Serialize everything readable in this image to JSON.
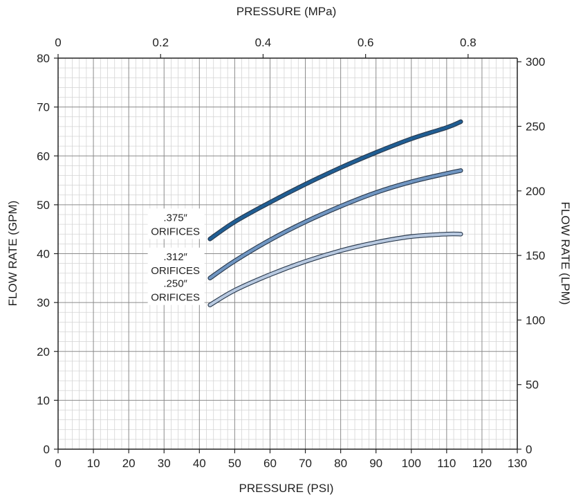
{
  "chart_data": {
    "type": "line",
    "title": "",
    "x_axis_bottom": {
      "label": "PRESSURE (PSI)",
      "range": [
        0,
        130
      ],
      "ticks": [
        0,
        10,
        20,
        30,
        40,
        50,
        60,
        70,
        80,
        90,
        100,
        110,
        120,
        130
      ],
      "tick_labels": [
        "0",
        "10",
        "20",
        "30",
        "40",
        "50",
        "60",
        "70",
        "80",
        "90",
        "100",
        "110",
        "120",
        "130"
      ]
    },
    "x_axis_top": {
      "label": "PRESSURE (MPa)",
      "range": [
        0,
        0.896
      ],
      "ticks": [
        0,
        0.2,
        0.4,
        0.6,
        0.8
      ],
      "tick_labels": [
        "0",
        "0.2",
        "0.4",
        "0.6",
        "0.8"
      ]
    },
    "y_axis_left": {
      "label": "FLOW RATE (GPM)",
      "range": [
        0,
        80
      ],
      "ticks": [
        0,
        10,
        20,
        30,
        40,
        50,
        60,
        70,
        80
      ],
      "tick_labels": [
        "0",
        "10",
        "20",
        "30",
        "40",
        "50",
        "60",
        "70",
        "80"
      ]
    },
    "y_axis_right": {
      "label": "FLOW RATE (LPM)",
      "range": [
        0,
        302.8
      ],
      "ticks": [
        0,
        50,
        100,
        150,
        200,
        250,
        300
      ],
      "tick_labels": [
        "0",
        "50",
        "100",
        "150",
        "200",
        "250",
        "300"
      ]
    },
    "grid": true,
    "series": [
      {
        "name": ".375″ ORIFICES",
        "label_lines": [
          ".375″",
          "ORIFICES"
        ],
        "color": "#1f5e94",
        "x": [
          43,
          50,
          60,
          70,
          80,
          90,
          100,
          110,
          114
        ],
        "y": [
          43,
          46.5,
          50.5,
          54.2,
          57.6,
          60.7,
          63.5,
          65.8,
          67
        ]
      },
      {
        "name": ".312″ ORIFICES",
        "label_lines": [
          ".312″",
          "ORIFICES"
        ],
        "color": "#7096c2",
        "x": [
          43,
          50,
          60,
          70,
          80,
          90,
          100,
          110,
          114
        ],
        "y": [
          35,
          38.5,
          42.8,
          46.5,
          49.7,
          52.5,
          54.7,
          56.4,
          57
        ]
      },
      {
        "name": ".250″ ORIFICES",
        "label_lines": [
          ".250″",
          "ORIFICES"
        ],
        "color": "#b8c9e0",
        "x": [
          43,
          50,
          60,
          70,
          80,
          90,
          100,
          110,
          114
        ],
        "y": [
          29.5,
          32.5,
          35.7,
          38.4,
          40.6,
          42.3,
          43.5,
          44,
          44
        ]
      }
    ]
  }
}
